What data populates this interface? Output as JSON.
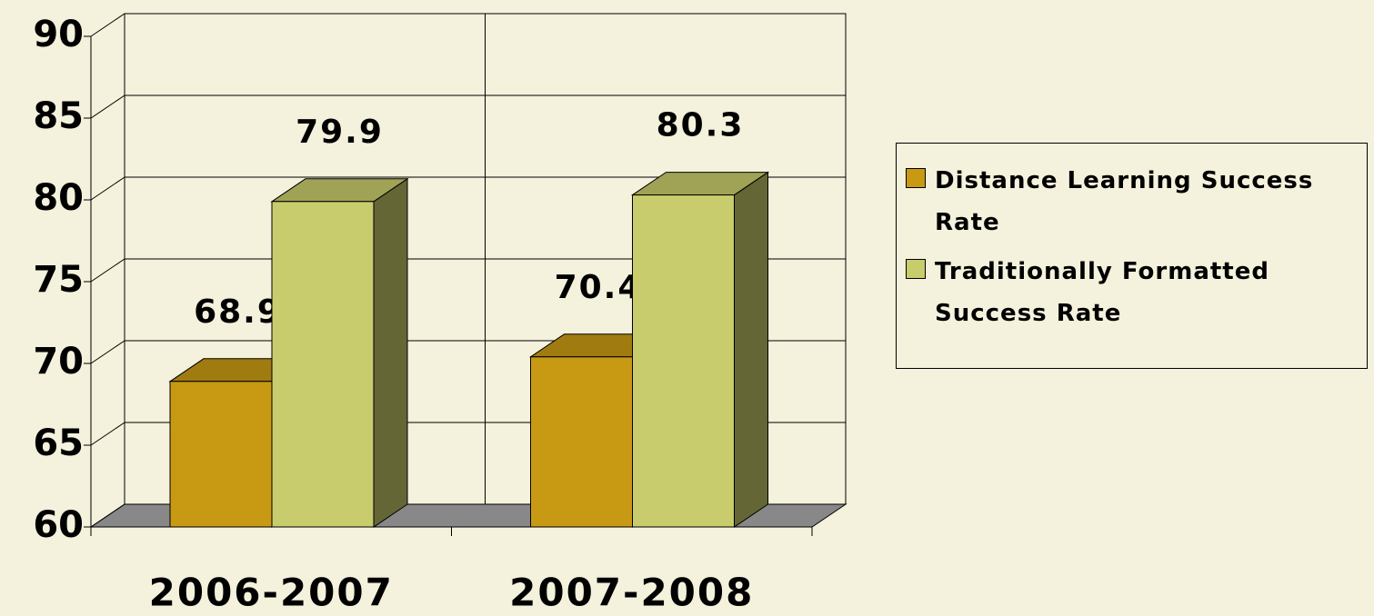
{
  "chart_data": {
    "type": "bar3d",
    "categories": [
      "2006-2007",
      "2007-2008"
    ],
    "series": [
      {
        "name": "Distance Learning Success Rate",
        "color": "#c89a14",
        "values": [
          68.9,
          70.4
        ]
      },
      {
        "name": "Traditionally Formatted Success Rate",
        "color": "#c8cc6c",
        "values": [
          79.9,
          80.3
        ]
      }
    ],
    "ylim": [
      60,
      90
    ],
    "yticks": [
      60,
      65,
      70,
      75,
      80,
      85,
      90
    ],
    "grid": true,
    "legend": "right"
  }
}
